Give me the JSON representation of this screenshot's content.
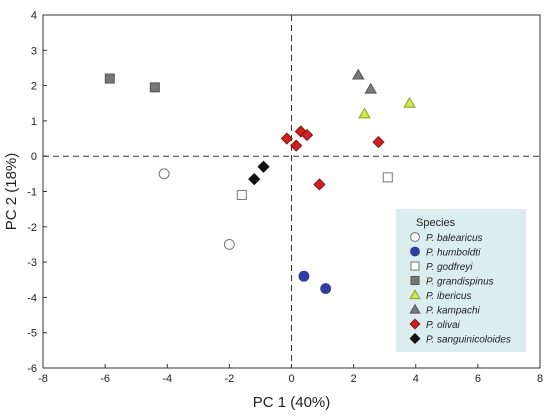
{
  "chart_data": {
    "type": "scatter",
    "xlabel": "PC 1 (40%)",
    "ylabel": "PC 2 (18%)",
    "xlim": [
      -8,
      8
    ],
    "ylim": [
      -6,
      4
    ],
    "x_ticks": [
      -8,
      -6,
      -4,
      -2,
      0,
      2,
      4,
      6,
      8
    ],
    "y_ticks": [
      -6,
      -5,
      -4,
      -3,
      -2,
      -1,
      0,
      1,
      2,
      3,
      4
    ],
    "reference_lines": {
      "x": 0,
      "y": 0,
      "style": "dashed"
    },
    "grid": false,
    "legend": {
      "title": "Species",
      "placement": "bottom-right",
      "background": "#dcedf0"
    },
    "series": [
      {
        "name": "P. balearicus",
        "marker": "circle",
        "fill": "#ffffff",
        "stroke": "#777777",
        "points": [
          [
            -4.1,
            -0.5
          ],
          [
            -2.0,
            -2.5
          ]
        ]
      },
      {
        "name": "P. humboldti",
        "marker": "circle",
        "fill": "#2f3f9e",
        "stroke": "#2f3f9e",
        "points": [
          [
            0.4,
            -3.4
          ],
          [
            1.1,
            -3.75
          ]
        ]
      },
      {
        "name": "P. godfreyi",
        "marker": "square",
        "fill": "#ffffff",
        "stroke": "#777777",
        "points": [
          [
            -1.6,
            -1.1
          ],
          [
            3.1,
            -0.6
          ]
        ]
      },
      {
        "name": "P. grandispinus",
        "marker": "square",
        "fill": "#777777",
        "stroke": "#555555",
        "points": [
          [
            -5.85,
            2.2
          ],
          [
            -4.4,
            1.95
          ]
        ]
      },
      {
        "name": "P. ibericus",
        "marker": "triangle",
        "fill": "#cfe84e",
        "stroke": "#8aa21a",
        "points": [
          [
            2.35,
            1.2
          ],
          [
            3.8,
            1.5
          ]
        ]
      },
      {
        "name": "P. kampachi",
        "marker": "triangle",
        "fill": "#7a7a7a",
        "stroke": "#555555",
        "points": [
          [
            2.15,
            2.3
          ],
          [
            2.55,
            1.9
          ]
        ]
      },
      {
        "name": "P. olivai",
        "marker": "diamond",
        "fill": "#cc2222",
        "stroke": "#8a1010",
        "points": [
          [
            -0.15,
            0.5
          ],
          [
            0.15,
            0.3
          ],
          [
            0.3,
            0.7
          ],
          [
            0.5,
            0.6
          ],
          [
            2.8,
            0.4
          ],
          [
            0.9,
            -0.8
          ]
        ]
      },
      {
        "name": "P. sanguinicoloides",
        "marker": "diamond",
        "fill": "#111111",
        "stroke": "#111111",
        "points": [
          [
            -0.9,
            -0.3
          ],
          [
            -1.2,
            -0.65
          ]
        ]
      }
    ]
  }
}
